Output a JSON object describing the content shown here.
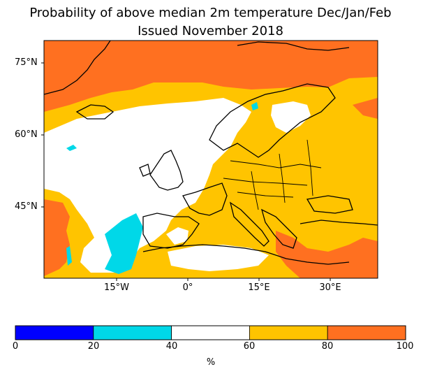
{
  "title_line1": "Probability of above median 2m temperature Dec/Jan/Feb",
  "title_line2": "Issued November 2018",
  "lat_labels": [
    "75°N",
    "60°N",
    "45°N"
  ],
  "lon_labels": [
    "15°W",
    "0°",
    "15°E",
    "30°E"
  ],
  "colorbar": {
    "ticks": [
      "0",
      "20",
      "40",
      "60",
      "80",
      "100"
    ],
    "unit_label": "%",
    "bins": [
      {
        "range": "0-20",
        "color": "#0000ff"
      },
      {
        "range": "20-40",
        "color": "#00d8e8"
      },
      {
        "range": "40-60",
        "color": "#ffffff"
      },
      {
        "range": "60-80",
        "color": "#ffc400"
      },
      {
        "range": "80-100",
        "color": "#ff7020"
      }
    ]
  }
}
